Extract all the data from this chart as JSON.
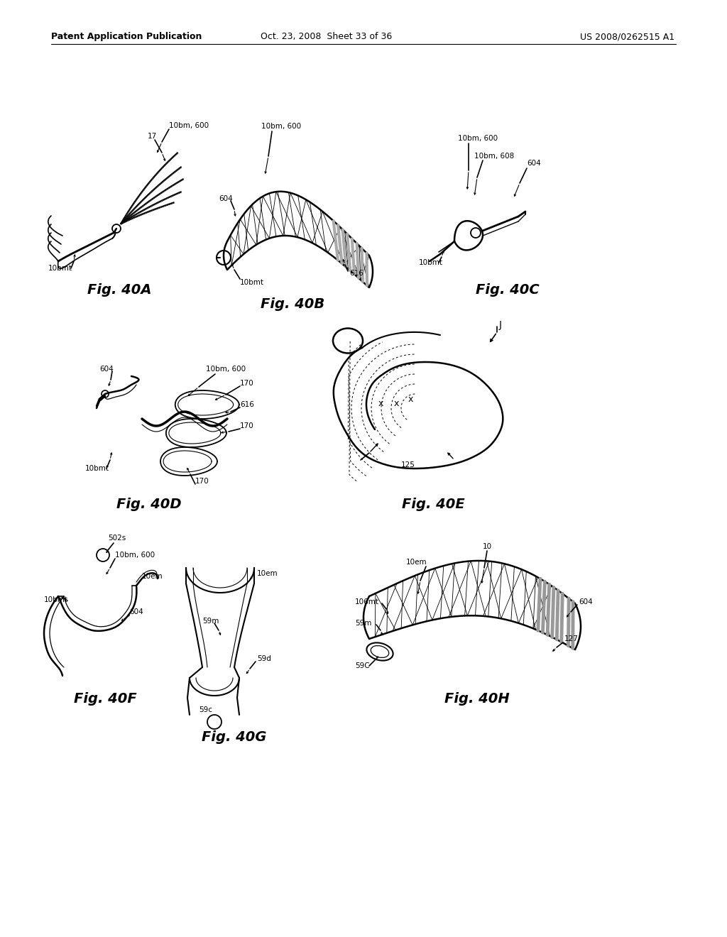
{
  "page_title_left": "Patent Application Publication",
  "page_title_middle": "Oct. 23, 2008  Sheet 33 of 36",
  "page_title_right": "US 2008/0262515 A1",
  "background_color": "#ffffff",
  "fig_label_fontsize": 14,
  "header_fontsize": 9,
  "anno_fontsize": 7.5
}
